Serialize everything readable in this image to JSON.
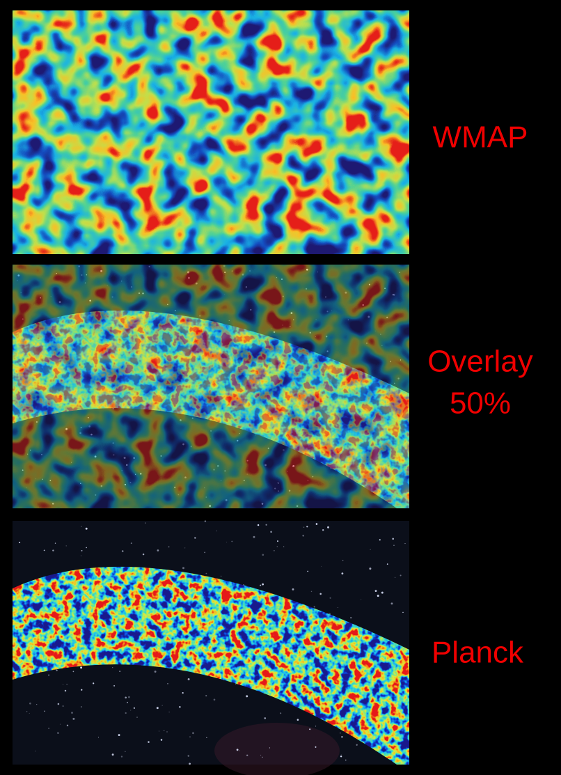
{
  "panels": [
    {
      "label_lines": [
        "WMAP"
      ]
    },
    {
      "label_lines": [
        "Overlay",
        "50%"
      ]
    },
    {
      "label_lines": [
        "Planck"
      ]
    }
  ]
}
